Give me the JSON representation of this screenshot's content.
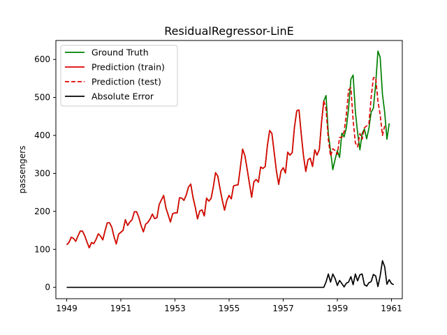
{
  "chart_data": {
    "type": "line",
    "title": "ResidualRegressor-LinE",
    "xlabel": "",
    "ylabel": "passengers",
    "xlim": [
      1948.6,
      1961.4
    ],
    "ylim": [
      -30,
      650
    ],
    "x_ticks": [
      1949,
      1951,
      1953,
      1955,
      1957,
      1959,
      1961
    ],
    "x_tick_labels": [
      "1949",
      "1951",
      "1953",
      "1955",
      "1957",
      "1959",
      "1961"
    ],
    "y_ticks": [
      0,
      100,
      200,
      300,
      400,
      500,
      600
    ],
    "y_tick_labels": [
      "0",
      "100",
      "200",
      "300",
      "400",
      "500",
      "600"
    ],
    "legend_position": "top-left",
    "x_start": 1949.0,
    "x_step": 0.08333,
    "series": [
      {
        "name": "Ground Truth",
        "color": "#008000",
        "style": "solid",
        "values": [
          112,
          118,
          132,
          129,
          121,
          135,
          148,
          148,
          136,
          119,
          104,
          118,
          115,
          126,
          141,
          135,
          125,
          149,
          170,
          170,
          158,
          133,
          114,
          140,
          145,
          150,
          178,
          163,
          172,
          178,
          199,
          199,
          184,
          162,
          146,
          166,
          171,
          180,
          193,
          181,
          183,
          218,
          230,
          242,
          209,
          191,
          172,
          194,
          196,
          196,
          236,
          235,
          229,
          243,
          264,
          272,
          237,
          211,
          180,
          201,
          204,
          188,
          235,
          227,
          234,
          264,
          302,
          293,
          259,
          229,
          203,
          229,
          242,
          233,
          267,
          269,
          270,
          315,
          364,
          347,
          312,
          274,
          237,
          278,
          284,
          277,
          317,
          313,
          318,
          374,
          413,
          405,
          355,
          306,
          271,
          306,
          315,
          301,
          356,
          348,
          355,
          422,
          465,
          467,
          404,
          347,
          305,
          336,
          340,
          318,
          362,
          348,
          363,
          435,
          491,
          505,
          404,
          359,
          310,
          337,
          360,
          342,
          406,
          396,
          420,
          472,
          548,
          559,
          463,
          407,
          362,
          405,
          417,
          391,
          419,
          461,
          472,
          535,
          622,
          606,
          508,
          461,
          390,
          432
        ]
      },
      {
        "name": "Prediction (train)",
        "color": "#e00000",
        "style": "solid",
        "values": [
          112,
          118,
          132,
          129,
          121,
          135,
          148,
          148,
          136,
          119,
          104,
          118,
          115,
          126,
          141,
          135,
          125,
          149,
          170,
          170,
          158,
          133,
          114,
          140,
          145,
          150,
          178,
          163,
          172,
          178,
          199,
          199,
          184,
          162,
          146,
          166,
          171,
          180,
          193,
          181,
          183,
          218,
          230,
          242,
          209,
          191,
          172,
          194,
          196,
          196,
          236,
          235,
          229,
          243,
          264,
          272,
          237,
          211,
          180,
          201,
          204,
          188,
          235,
          227,
          234,
          264,
          302,
          293,
          259,
          229,
          203,
          229,
          242,
          233,
          267,
          269,
          270,
          315,
          364,
          347,
          312,
          274,
          237,
          278,
          284,
          277,
          317,
          313,
          318,
          374,
          413,
          405,
          355,
          306,
          271,
          306,
          315,
          301,
          356,
          348,
          355,
          422,
          465,
          467,
          404,
          347,
          305,
          336,
          340,
          318,
          362,
          348,
          363,
          435,
          491
        ]
      },
      {
        "name": "Prediction (test)",
        "color": "#e00000",
        "style": "dashed",
        "x_start_index": 114,
        "values": [
          491,
          470,
          390,
          345,
          365,
          360,
          350,
          395,
          395,
          410,
          455,
          520,
          525,
          440,
          380,
          370,
          405,
          390,
          420,
          425,
          430,
          500,
          552,
          552,
          490,
          455,
          400,
          425
        ]
      },
      {
        "name": "Absolute Error",
        "color": "#000000",
        "style": "solid",
        "values": [
          0,
          0,
          0,
          0,
          0,
          0,
          0,
          0,
          0,
          0,
          0,
          0,
          0,
          0,
          0,
          0,
          0,
          0,
          0,
          0,
          0,
          0,
          0,
          0,
          0,
          0,
          0,
          0,
          0,
          0,
          0,
          0,
          0,
          0,
          0,
          0,
          0,
          0,
          0,
          0,
          0,
          0,
          0,
          0,
          0,
          0,
          0,
          0,
          0,
          0,
          0,
          0,
          0,
          0,
          0,
          0,
          0,
          0,
          0,
          0,
          0,
          0,
          0,
          0,
          0,
          0,
          0,
          0,
          0,
          0,
          0,
          0,
          0,
          0,
          0,
          0,
          0,
          0,
          0,
          0,
          0,
          0,
          0,
          0,
          0,
          0,
          0,
          0,
          0,
          0,
          0,
          0,
          0,
          0,
          0,
          0,
          0,
          0,
          0,
          0,
          0,
          0,
          0,
          0,
          0,
          0,
          0,
          0,
          0,
          0,
          0,
          0,
          0,
          0,
          0,
          14,
          35,
          14,
          35,
          23,
          5,
          18,
          10,
          1,
          11,
          14,
          28,
          7,
          35,
          17,
          33,
          35,
          7,
          3,
          12,
          15,
          34,
          30,
          2,
          30,
          70,
          54,
          8,
          20,
          10,
          7
        ]
      }
    ]
  }
}
